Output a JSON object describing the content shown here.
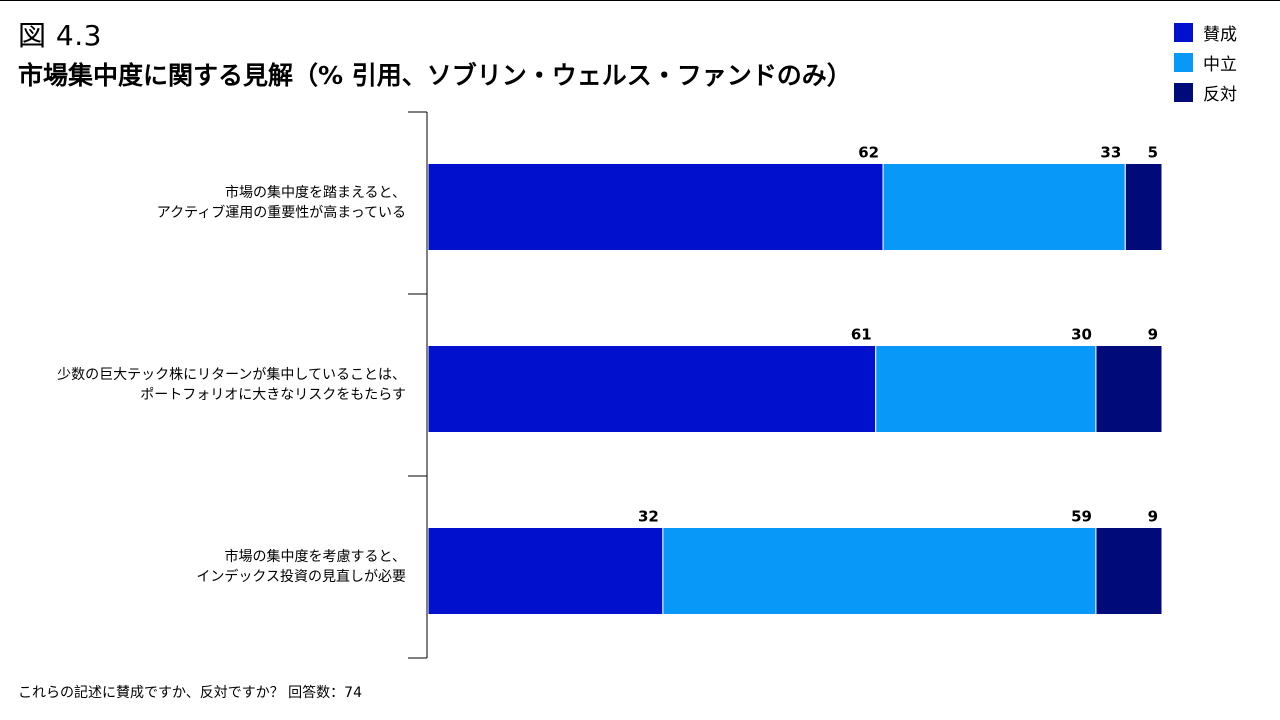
{
  "figure": {
    "number": "図 4.3",
    "title": "市場集中度に関する見解（% 引用、ソブリン・ウェルス・ファンドのみ）",
    "footnote": "これらの記述に賛成ですか、反対ですか？ 回答数：74"
  },
  "colors": {
    "agree": "#0010cc",
    "neutral": "#0899f8",
    "disagree": "#000a78"
  },
  "chart_data": {
    "type": "bar",
    "orientation": "horizontal",
    "stacked": true,
    "xlim": [
      0,
      100
    ],
    "legend": "top-right",
    "grid": false,
    "categories": [
      [
        "市場の集中度を踏まえると、",
        "アクティブ運用の重要性が高まっている"
      ],
      [
        "少数の巨大テック株にリターンが集中していることは、",
        "ポートフォリオに大きなリスクをもたらす"
      ],
      [
        "市場の集中度を考慮すると、",
        "インデックス投資の見直しが必要"
      ]
    ],
    "series": [
      {
        "name": "賛成",
        "values": [
          62,
          61,
          32
        ]
      },
      {
        "name": "中立",
        "values": [
          33,
          30,
          59
        ]
      },
      {
        "name": "反対",
        "values": [
          5,
          9,
          9
        ]
      }
    ]
  }
}
